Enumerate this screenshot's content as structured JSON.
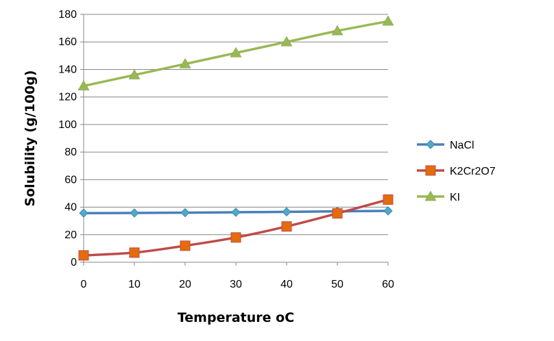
{
  "chart_data": {
    "type": "line",
    "title": "",
    "xlabel": "Temperature oC",
    "ylabel": "Solubility (g/100g)",
    "x": [
      0,
      10,
      20,
      30,
      40,
      50,
      60
    ],
    "x_tick_labels": [
      "0",
      "10",
      "20",
      "30",
      "40",
      "50",
      "60"
    ],
    "xlim": [
      0,
      60
    ],
    "ylim": [
      0,
      180
    ],
    "y_tick_labels": [
      "0",
      "20",
      "40",
      "60",
      "80",
      "100",
      "120",
      "140",
      "160",
      "180"
    ],
    "grid": "horizontal",
    "legend_position": "right",
    "series": [
      {
        "name": "NaCl",
        "values": [
          35.7,
          35.8,
          36.0,
          36.3,
          36.6,
          37.0,
          37.3
        ],
        "color": "#4A7EBB",
        "marker": "diamond"
      },
      {
        "name": "K2Cr2O7",
        "values": [
          5,
          7,
          12,
          18,
          26,
          35.5,
          45.5
        ],
        "color": "#BE4B48",
        "marker": "square"
      },
      {
        "name": "KI",
        "values": [
          128,
          136,
          144,
          152,
          160,
          168,
          175
        ],
        "color": "#98B954",
        "marker": "triangle"
      }
    ]
  }
}
